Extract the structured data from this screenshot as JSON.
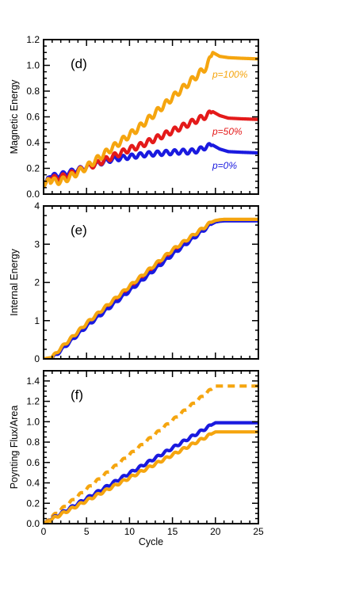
{
  "chart_data": [
    {
      "type": "line",
      "panel": "(d)",
      "ylabel": "Magnetic Energy",
      "xlabel": "",
      "xlim": [
        0,
        25
      ],
      "ylim": [
        0,
        1.2
      ],
      "xticks": [
        0,
        5,
        10,
        15,
        20,
        25
      ],
      "yticks": [
        "0.0",
        "0.2",
        "0.4",
        "0.6",
        "0.8",
        "1.0",
        "1.2"
      ],
      "show_x_tick_labels": false,
      "series": [
        {
          "name": "p=0%",
          "color": "#1a1adf",
          "style": "solid",
          "x": [
            0,
            0.5,
            1,
            2,
            3,
            4,
            5,
            6,
            7,
            8,
            9,
            10,
            11,
            12,
            13,
            14,
            15,
            16,
            17,
            18,
            19,
            19.7,
            20.5,
            21.5,
            23,
            25
          ],
          "y": [
            0.05,
            0.13,
            0.14,
            0.15,
            0.17,
            0.19,
            0.21,
            0.23,
            0.25,
            0.27,
            0.28,
            0.29,
            0.3,
            0.31,
            0.315,
            0.32,
            0.325,
            0.33,
            0.33,
            0.34,
            0.37,
            0.38,
            0.35,
            0.33,
            0.325,
            0.32
          ],
          "label": "p=0%"
        },
        {
          "name": "p=50%",
          "color": "#e41a1a",
          "style": "solid",
          "x": [
            0,
            0.5,
            1,
            2,
            3,
            4,
            5,
            6,
            7,
            8,
            9,
            10,
            11,
            12,
            13,
            14,
            15,
            16,
            17,
            18,
            19,
            19.7,
            20.5,
            21.5,
            23,
            25
          ],
          "y": [
            0.05,
            0.12,
            0.12,
            0.13,
            0.15,
            0.18,
            0.21,
            0.23,
            0.26,
            0.29,
            0.32,
            0.35,
            0.37,
            0.4,
            0.43,
            0.46,
            0.49,
            0.52,
            0.55,
            0.58,
            0.61,
            0.64,
            0.61,
            0.59,
            0.585,
            0.58
          ],
          "label": "p=50%"
        },
        {
          "name": "p=100%",
          "color": "#f5a50f",
          "style": "solid",
          "x": [
            0,
            0.5,
            1,
            2,
            3,
            4,
            5,
            6,
            7,
            8,
            9,
            10,
            11,
            12,
            13,
            14,
            15,
            16,
            17,
            18,
            19,
            19.7,
            20.5,
            21.5,
            23,
            25
          ],
          "y": [
            0.05,
            0.12,
            0.1,
            0.1,
            0.13,
            0.17,
            0.21,
            0.26,
            0.31,
            0.36,
            0.41,
            0.46,
            0.51,
            0.57,
            0.63,
            0.69,
            0.75,
            0.81,
            0.87,
            0.93,
            0.99,
            1.1,
            1.07,
            1.06,
            1.055,
            1.05
          ],
          "label": "p=100%"
        }
      ]
    },
    {
      "type": "line",
      "panel": "(e)",
      "ylabel": "Internal Energy",
      "xlabel": "",
      "xlim": [
        0,
        25
      ],
      "ylim": [
        0,
        4
      ],
      "xticks": [
        0,
        5,
        10,
        15,
        20,
        25
      ],
      "yticks": [
        "0",
        "1",
        "2",
        "3",
        "4"
      ],
      "show_x_tick_labels": false,
      "series": [
        {
          "color": "#e41a1a",
          "style": "solid",
          "x": [
            0,
            1,
            2,
            5,
            10,
            15,
            19.5,
            20,
            20.5,
            21,
            22,
            25
          ],
          "y": [
            0.0,
            0.03,
            0.25,
            0.9,
            1.85,
            2.8,
            3.55,
            3.6,
            3.62,
            3.63,
            3.63,
            3.63
          ]
        },
        {
          "color": "#1a1adf",
          "style": "solid",
          "x": [
            0,
            1,
            2,
            5,
            10,
            15,
            19.5,
            20,
            20.5,
            21,
            22,
            25
          ],
          "y": [
            0.0,
            0.02,
            0.22,
            0.85,
            1.78,
            2.73,
            3.52,
            3.58,
            3.6,
            3.61,
            3.61,
            3.61
          ]
        },
        {
          "color": "#f5a50f",
          "style": "solid",
          "x": [
            0,
            1,
            2,
            5,
            10,
            15,
            19.5,
            20,
            20.5,
            21,
            22,
            25
          ],
          "y": [
            0.0,
            0.04,
            0.28,
            0.93,
            1.9,
            2.85,
            3.57,
            3.62,
            3.64,
            3.65,
            3.65,
            3.65
          ]
        }
      ]
    },
    {
      "type": "line",
      "panel": "(f)",
      "ylabel": "Poynting Flux/Area",
      "xlabel": "Cycle",
      "xlim": [
        0,
        25
      ],
      "ylim": [
        0,
        1.5
      ],
      "xticks": [
        0,
        5,
        10,
        15,
        20,
        25
      ],
      "xticklabels": [
        "0",
        "5",
        "10",
        "15",
        "20",
        "25"
      ],
      "yticks": [
        "0.0",
        "0.2",
        "0.4",
        "0.6",
        "0.8",
        "1.0",
        "1.2",
        "1.4"
      ],
      "show_x_tick_labels": true,
      "series": [
        {
          "color": "#f5a50f",
          "style": "dashed",
          "x": [
            0,
            20,
            25
          ],
          "y": [
            0.0,
            1.35,
            1.35
          ]
        },
        {
          "color": "#1a1adf",
          "style": "solid",
          "x": [
            0,
            20,
            25
          ],
          "y": [
            0.0,
            0.99,
            0.99
          ]
        },
        {
          "color": "#f5a50f",
          "style": "solid",
          "x": [
            0,
            20,
            25
          ],
          "y": [
            0.0,
            0.9,
            0.9
          ]
        }
      ]
    }
  ]
}
